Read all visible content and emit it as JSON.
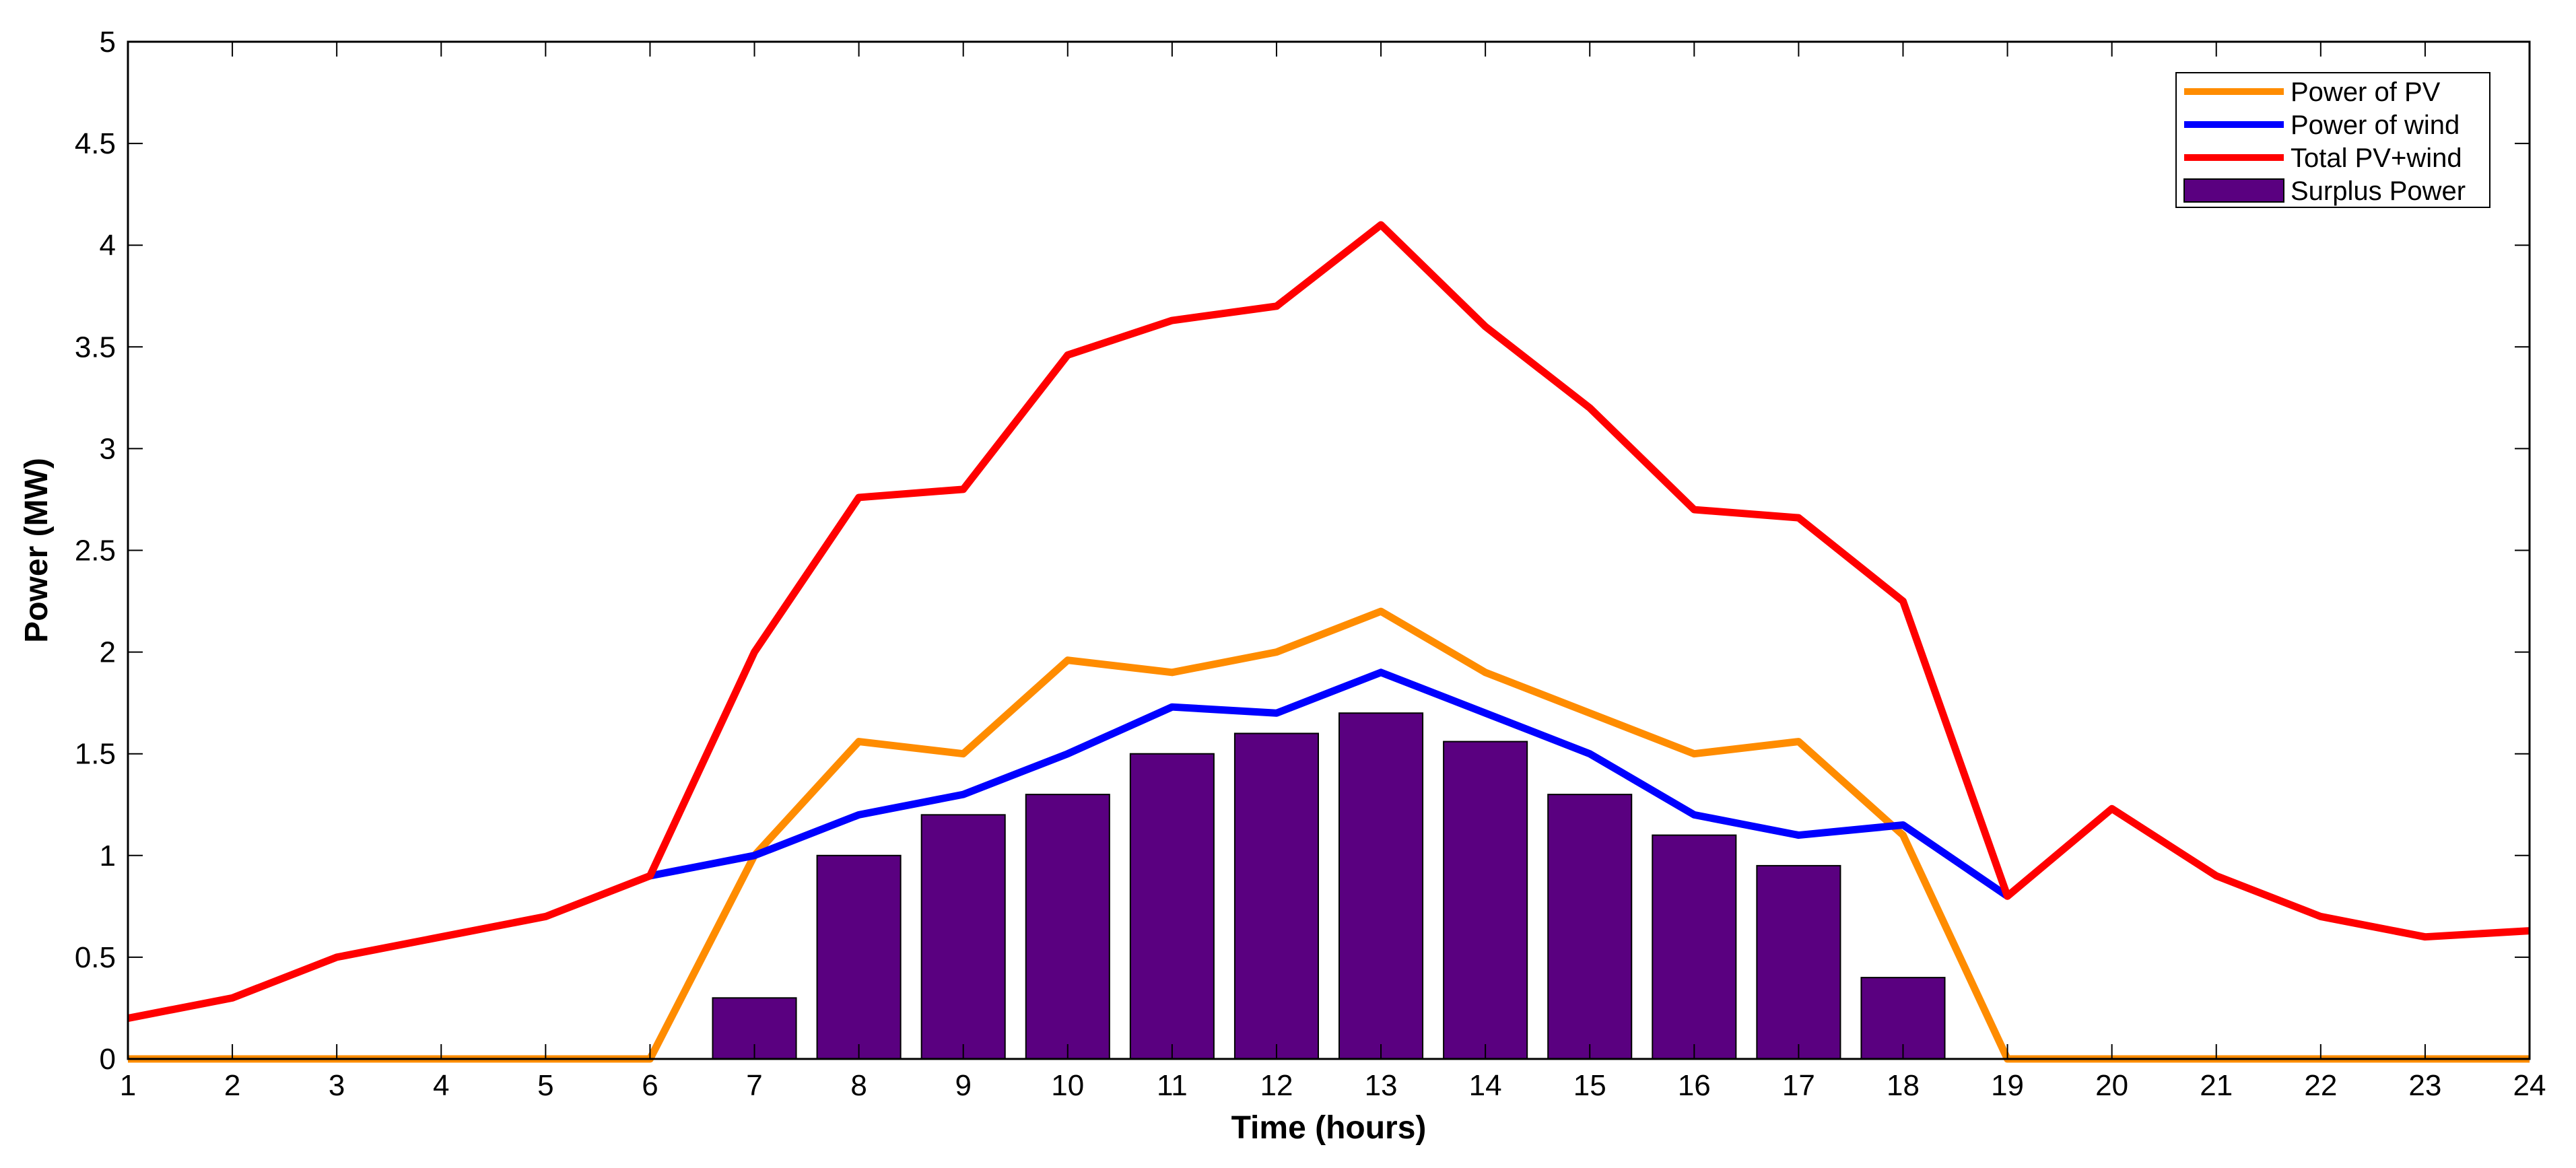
{
  "chart_data": {
    "type": "line+bar",
    "title": "",
    "xlabel": "Time (hours)",
    "ylabel": "Power (MW)",
    "xlim": [
      1,
      24
    ],
    "ylim": [
      0,
      5
    ],
    "x_ticks": [
      1,
      2,
      3,
      4,
      5,
      6,
      7,
      8,
      9,
      10,
      11,
      12,
      13,
      14,
      15,
      16,
      17,
      18,
      19,
      20,
      21,
      22,
      23,
      24
    ],
    "y_ticks": [
      0,
      0.5,
      1,
      1.5,
      2,
      2.5,
      3,
      3.5,
      4,
      4.5,
      5
    ],
    "x": [
      1,
      2,
      3,
      4,
      5,
      6,
      7,
      8,
      9,
      10,
      11,
      12,
      13,
      14,
      15,
      16,
      17,
      18,
      19,
      20,
      21,
      22,
      23,
      24
    ],
    "series": [
      {
        "name": "Power of PV",
        "kind": "line",
        "color": "#FF8C00",
        "x": [
          1,
          2,
          3,
          4,
          5,
          6,
          7,
          8,
          9,
          10,
          11,
          12,
          13,
          14,
          15,
          16,
          17,
          18,
          19,
          20,
          21,
          22,
          23,
          24
        ],
        "values": [
          0,
          0,
          0,
          0,
          0,
          0,
          1.0,
          1.56,
          1.5,
          1.96,
          1.9,
          2.0,
          2.2,
          1.9,
          1.7,
          1.5,
          1.56,
          1.1,
          0,
          0,
          0,
          0,
          0,
          0
        ]
      },
      {
        "name": "Power of wind",
        "kind": "line",
        "color": "#0000FF",
        "x": [
          6,
          7,
          8,
          9,
          10,
          11,
          12,
          13,
          14,
          15,
          16,
          17,
          18,
          19
        ],
        "values": [
          0.9,
          1.0,
          1.2,
          1.3,
          1.5,
          1.73,
          1.7,
          1.9,
          1.7,
          1.5,
          1.2,
          1.1,
          1.15,
          0.8
        ]
      },
      {
        "name": "Total PV+wind",
        "kind": "line",
        "color": "#FF0000",
        "x": [
          1,
          2,
          3,
          4,
          5,
          6,
          7,
          8,
          9,
          10,
          11,
          12,
          13,
          14,
          15,
          16,
          17,
          18,
          19,
          20,
          21,
          22,
          23,
          24
        ],
        "values": [
          0.2,
          0.3,
          0.5,
          0.6,
          0.7,
          0.9,
          2.0,
          2.76,
          2.8,
          3.46,
          3.63,
          3.7,
          4.1,
          3.6,
          3.2,
          2.7,
          2.66,
          2.25,
          0.8,
          1.23,
          0.9,
          0.7,
          0.6,
          0.63
        ]
      },
      {
        "name": "Surplus Power",
        "kind": "bar",
        "color": "#5A0080",
        "x": [
          7,
          8,
          9,
          10,
          11,
          12,
          13,
          14,
          15,
          16,
          17,
          18
        ],
        "values": [
          0.3,
          1.0,
          1.2,
          1.3,
          1.5,
          1.6,
          1.7,
          1.56,
          1.3,
          1.1,
          0.95,
          0.4
        ]
      }
    ],
    "legend": {
      "position": "top-right",
      "entries": [
        "Power of PV",
        "Power of wind",
        "Total PV+wind",
        "Surplus Power"
      ]
    },
    "grid": false,
    "bar_width_fraction": 0.8
  }
}
